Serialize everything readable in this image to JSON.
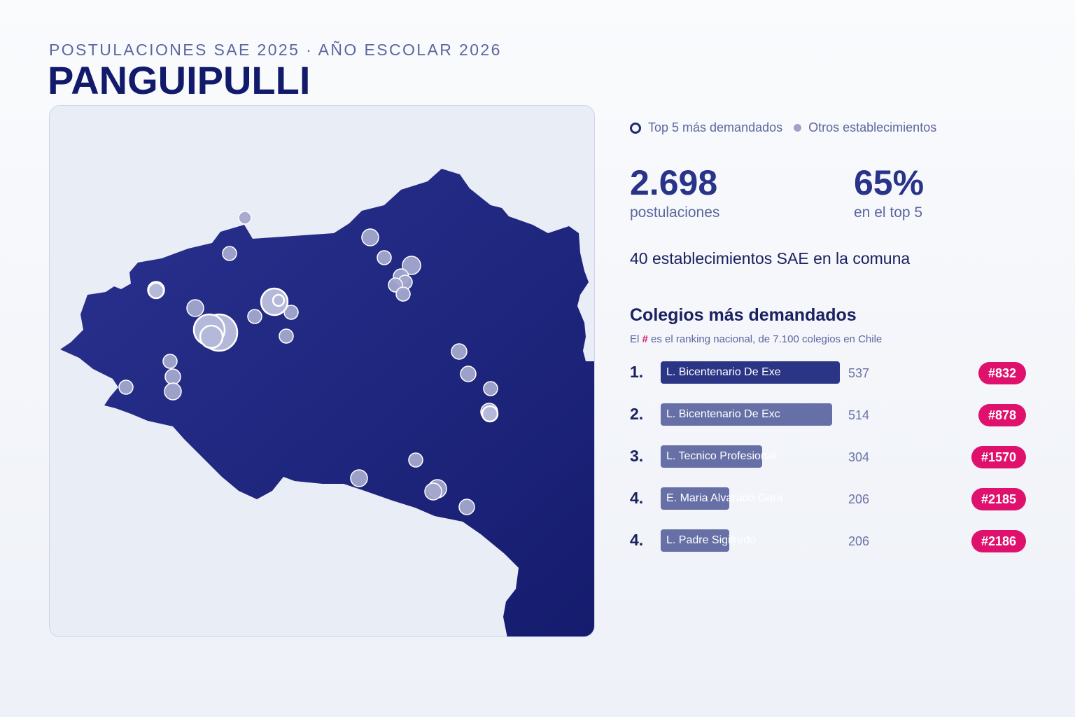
{
  "header": {
    "subtitle": "POSTULACIONES SAE 2025 · AÑO ESCOLAR 2026",
    "title": "PANGUIPULLI"
  },
  "legend": {
    "top5_label": "Top 5 más demandados",
    "others_label": "Otros establecimientos"
  },
  "stats": {
    "applications_value": "2.698",
    "applications_label": "postulaciones",
    "top5_share_value": "65%",
    "top5_share_label": "en el top 5"
  },
  "establishments_text": "40 establecimientos SAE en la comuna",
  "ranking_section": {
    "title": "Colegios más demandados",
    "note_prefix": "El",
    "note_hash": "#",
    "note_suffix": "es el ranking nacional, de 7.100 colegios en Chile",
    "rows": [
      {
        "rank": "1.",
        "name": "L. Bicentenario De Exe",
        "value": 537,
        "value_text": "537",
        "badge": "#832"
      },
      {
        "rank": "2.",
        "name": "L. Bicentenario De Exc",
        "value": 514,
        "value_text": "514",
        "badge": "#878"
      },
      {
        "rank": "3.",
        "name": "L. Tecnico Profesional",
        "value": 304,
        "value_text": "304",
        "badge": "#1570"
      },
      {
        "rank": "4.",
        "name": "E. Maria Alvarado Gara",
        "value": 206,
        "value_text": "206",
        "badge": "#2185"
      },
      {
        "rank": "4.",
        "name": "L. Padre Sigifredo",
        "value": 206,
        "value_text": "206",
        "badge": "#2186"
      }
    ]
  },
  "colors": {
    "region_fill": "#232a82",
    "marker_fill": "#a3a8cc",
    "accent": "#e0116c",
    "bar_top": "#2b3586",
    "bar_other": "#6670a6"
  }
}
